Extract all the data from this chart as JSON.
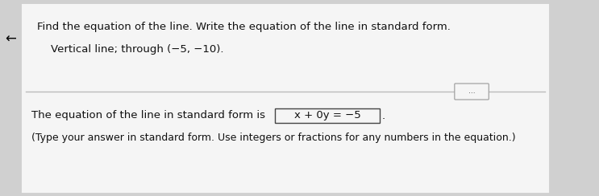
{
  "bg_color": "#d0d0d0",
  "white_panel_color": "#f5f5f5",
  "title_text": "Find the equation of the line. Write the equation of the line in standard form.",
  "subtitle_text": "Vertical line; through (−5, −10).",
  "answer_prefix": "The equation of the line in standard form is ",
  "answer_boxed": "x + 0y = −5",
  "answer_suffix": ".",
  "footnote_text": "(Type your answer in standard form. Use integers or fractions for any numbers in the equation.)",
  "dots_text": "...",
  "arrow_text": "←",
  "title_fontsize": 9.5,
  "subtitle_fontsize": 9.5,
  "answer_fontsize": 9.5,
  "footnote_fontsize": 9.0,
  "divider_color": "#bbbbbb",
  "text_color": "#111111"
}
